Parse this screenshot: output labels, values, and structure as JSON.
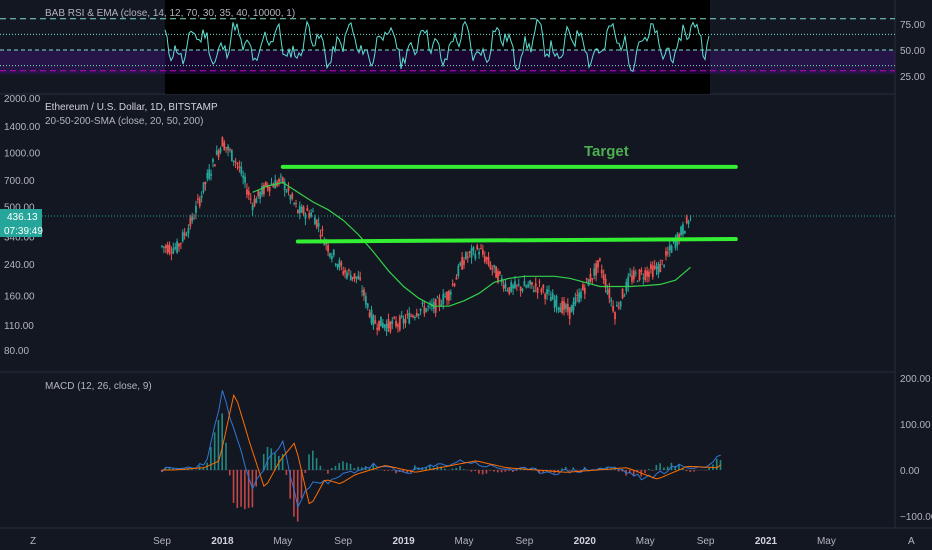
{
  "chart_data": [
    {
      "type": "line",
      "title": "BAB RSI & EMA (close, 14, 12, 70, 30, 35, 40, 10000, 1)",
      "y_ticks": [
        "75.00",
        "50.00",
        "25.00"
      ],
      "levels": [
        80,
        65,
        50,
        35,
        30
      ],
      "colors": {
        "line": "#5ee0d2",
        "band": "#4a148c",
        "dashes": "#7de0cf"
      }
    },
    {
      "type": "line",
      "title": "Ethereum / U.S. Dollar, 1D, BITSTAMP",
      "subtitle": "20-50-200-SMA (close, 20, 50, 200)",
      "y_ticks": [
        "2000.00",
        "1400.00",
        "1000.00",
        "700.00",
        "500.00",
        "340.00",
        "240.00",
        "160.00",
        "110.00",
        "80.00"
      ],
      "y_scale": "log",
      "price_tag": "436.13",
      "countdown": "07:39:49",
      "annotation": "Target",
      "lines": [
        {
          "label": "resistance",
          "x": [
            "2018-05",
            "2020-11"
          ],
          "y": [
            830,
            830
          ]
        },
        {
          "label": "support",
          "x": [
            "2018-05",
            "2020-11"
          ],
          "y": [
            320,
            330
          ]
        }
      ],
      "series": [
        {
          "values_by_month": {
            "2017-09": 300,
            "2017-10": 295,
            "2017-11": 420,
            "2017-12": 720,
            "2018-01": 1150,
            "2018-02": 870,
            "2018-03": 520,
            "2018-04": 660,
            "2018-05": 690,
            "2018-06": 470,
            "2018-07": 460,
            "2018-08": 300,
            "2018-09": 220,
            "2018-10": 200,
            "2018-11": 115,
            "2018-12": 110,
            "2019-01": 115,
            "2019-02": 135,
            "2019-03": 138,
            "2019-04": 165,
            "2019-05": 255,
            "2019-06": 290,
            "2019-07": 220,
            "2019-08": 175,
            "2019-09": 180,
            "2019-10": 180,
            "2019-11": 150,
            "2019-12": 130,
            "2020-01": 180,
            "2020-02": 240,
            "2020-03": 130,
            "2020-04": 200,
            "2020-05": 215,
            "2020-06": 230,
            "2020-07": 320,
            "2020-08": 436
          }
        },
        {
          "label": "SMA-200",
          "values_by_month": {
            "2018-03": 600,
            "2018-04": 650,
            "2018-05": 680,
            "2018-06": 600,
            "2018-07": 530,
            "2018-08": 480,
            "2018-09": 420,
            "2018-10": 350,
            "2018-11": 280,
            "2018-12": 220,
            "2019-01": 180,
            "2019-02": 155,
            "2019-03": 140,
            "2019-04": 140,
            "2019-05": 150,
            "2019-06": 165,
            "2019-07": 190,
            "2019-08": 200,
            "2019-09": 205,
            "2019-10": 205,
            "2019-11": 205,
            "2019-12": 200,
            "2020-01": 190,
            "2020-02": 180,
            "2020-03": 180,
            "2020-04": 180,
            "2020-05": 182,
            "2020-06": 185,
            "2020-07": 195,
            "2020-08": 230
          }
        }
      ]
    },
    {
      "type": "line",
      "title": "MACD (12, 26, close, 9)",
      "y_ticks": [
        "200.00",
        "100.00",
        "0.00",
        "−100.00"
      ]
    }
  ],
  "x_axis": {
    "ticks": [
      "Sep",
      "2018",
      "May",
      "Sep",
      "2019",
      "May",
      "Sep",
      "2020",
      "May",
      "Sep",
      "2021",
      "May"
    ]
  },
  "footer": {
    "z_button": "Z",
    "a_button": "A"
  }
}
